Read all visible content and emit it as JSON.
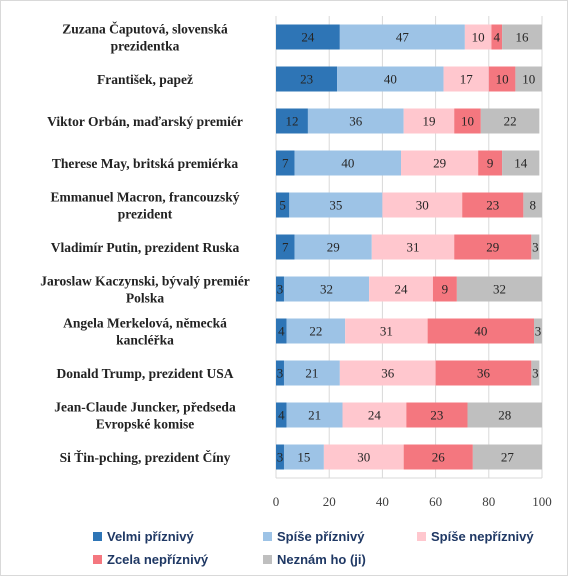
{
  "chart_data": {
    "type": "bar",
    "orientation": "horizontal",
    "stacked": true,
    "categories": [
      [
        "Zuzana Čaputová, slovenská",
        "prezidentka"
      ],
      [
        "František, papež"
      ],
      [
        "Viktor Orbán, maďarský premiér"
      ],
      [
        "Therese May, britská premiérka"
      ],
      [
        "Emmanuel Macron, francouzský",
        "prezident"
      ],
      [
        "Vladimír Putin, prezident Ruska"
      ],
      [
        "Jaroslaw Kaczynski,  bývalý premiér",
        "Polska"
      ],
      [
        "Angela Merkelová, německá",
        "kancléřka"
      ],
      [
        "Donald Trump, prezident USA"
      ],
      [
        "Jean-Claude Juncker, předseda",
        "Evropské komise"
      ],
      [
        "Si Ťin-pching, prezident Číny"
      ]
    ],
    "series": [
      {
        "name": "Velmi příznivý",
        "color": "#2e75b6",
        "values": [
          24,
          23,
          12,
          7,
          5,
          7,
          3,
          4,
          3,
          4,
          3
        ]
      },
      {
        "name": "Spíše příznivý",
        "color": "#9dc3e6",
        "values": [
          47,
          40,
          36,
          40,
          35,
          29,
          32,
          22,
          21,
          21,
          15
        ]
      },
      {
        "name": "Spíše nepříznivý",
        "color": "#ffc7ce",
        "values": [
          10,
          17,
          19,
          29,
          30,
          31,
          24,
          31,
          36,
          24,
          30
        ]
      },
      {
        "name": "Zcela nepříznivý",
        "color": "#f4777f",
        "values": [
          4,
          10,
          10,
          9,
          23,
          29,
          9,
          40,
          36,
          23,
          26
        ]
      },
      {
        "name": "Neznám ho (ji)",
        "color": "#bfbfbf",
        "values": [
          16,
          10,
          22,
          14,
          8,
          3,
          32,
          3,
          3,
          28,
          27
        ]
      }
    ],
    "xlim": [
      0,
      100
    ],
    "xticks": [
      0,
      20,
      40,
      60,
      80,
      100
    ],
    "grid": true,
    "legend_position": "bottom"
  }
}
